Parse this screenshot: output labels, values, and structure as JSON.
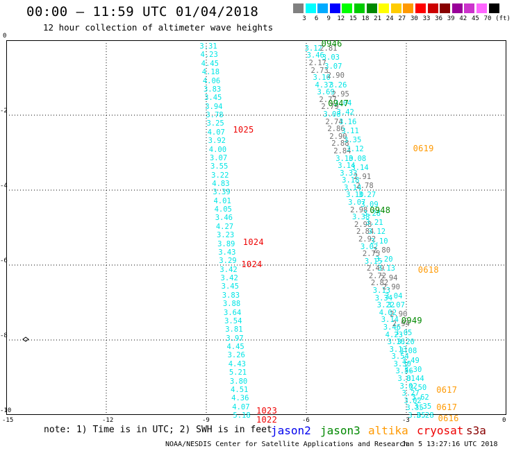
{
  "header": {
    "title": "00:00 – 11:59 UTC 01/04/2018",
    "subtitle": "12 hour collection of altimeter wave heights"
  },
  "colorbar": {
    "unit": "(ft)",
    "bins": [
      {
        "label": "3",
        "color": "#808080"
      },
      {
        "label": "6",
        "color": "#00ffff"
      },
      {
        "label": "9",
        "color": "#00aaff"
      },
      {
        "label": "12",
        "color": "#0000ff"
      },
      {
        "label": "15",
        "color": "#00ff00"
      },
      {
        "label": "18",
        "color": "#00cc00"
      },
      {
        "label": "21",
        "color": "#008800"
      },
      {
        "label": "24",
        "color": "#ffff00"
      },
      {
        "label": "27",
        "color": "#ffcc00"
      },
      {
        "label": "30",
        "color": "#ff9900"
      },
      {
        "label": "33",
        "color": "#ff0000"
      },
      {
        "label": "36",
        "color": "#cc0000"
      },
      {
        "label": "39",
        "color": "#880000"
      },
      {
        "label": "42",
        "color": "#990099"
      },
      {
        "label": "45",
        "color": "#cc33cc"
      },
      {
        "label": "70",
        "color": "#ff66ff"
      },
      {
        "label": "",
        "color": "#000000"
      }
    ]
  },
  "map": {
    "lon_range": [
      -15,
      0
    ],
    "lat_range": [
      -10,
      0
    ],
    "x_ticks": [
      "-15",
      "-12",
      "-9",
      "-6",
      "-3",
      "0"
    ],
    "y_ticks": [
      "0",
      "-2",
      "-4",
      "-6",
      "-8",
      "-10"
    ],
    "tracks": [
      {
        "name": "track-a",
        "color": "#00e5e5",
        "start": [
          -9.2,
          -0.15
        ],
        "end": [
          -8.2,
          -10.0
        ],
        "values": [
          "3.31",
          "4.23",
          "4.45",
          "4.18",
          "4.06",
          "3.83",
          "3.45",
          "3.94",
          "3.78",
          "3.25",
          "4.07",
          "3.92",
          "4.00",
          "3.07",
          "3.55",
          "3.22",
          "4.83",
          "3.39",
          "4.01",
          "4.05",
          "3.46",
          "4.27",
          "3.23",
          "3.89",
          "3.43",
          "3.29",
          "3.42",
          "3.42",
          "3.45",
          "3.83",
          "3.88",
          "3.64",
          "3.54",
          "3.81",
          "3.97",
          "4.45",
          "3.26",
          "4.43",
          "5.21",
          "3.80",
          "4.51",
          "4.36",
          "4.07",
          "5.18"
        ]
      },
      {
        "name": "track-b",
        "color": "#00e5e5",
        "start": [
          -6.05,
          -0.2
        ],
        "end": [
          -2.95,
          -10.0
        ],
        "values": [
          "3.12",
          "3.46",
          "2.17",
          "2.73",
          "3.10",
          "4.37",
          "3.69",
          "2.77",
          "2.79",
          "3.08",
          "2.74",
          "2.86",
          "2.90",
          "2.88",
          "2.84",
          "3.10",
          "3.14",
          "3.33",
          "3.18",
          "3.14",
          "3.10",
          "3.07",
          "2.98",
          "3.38",
          "2.98",
          "2.84",
          "2.92",
          "3.02",
          "2.75",
          "3.15",
          "2.49",
          "2.72",
          "2.82",
          "3.13",
          "3.34",
          "3.22",
          "4.02",
          "3.14",
          "3.46",
          "4.23",
          "3.16",
          "3.13",
          "3.54",
          "3.30",
          "3.56",
          "3.01",
          "3.02",
          "3.27",
          "3.02",
          "3.35",
          "3.85"
        ]
      },
      {
        "name": "track-c",
        "color": "#00e5e5",
        "start": [
          -5.6,
          -0.2
        ],
        "end": [
          -2.7,
          -10.0
        ],
        "values": [
          "2.81",
          "3.03",
          "3.07",
          "2.90",
          "3.26",
          "2.95",
          "3.04",
          "3.42",
          "3.16",
          "3.11",
          "3.35",
          "3.12",
          "3.08",
          "3.14",
          "2.91",
          "2.78",
          "3.27",
          "3.09",
          "3.28",
          "3.21",
          "3.12",
          "3.10",
          "2.80",
          "3.20",
          "3.13",
          "2.94",
          "2.90",
          "3.04",
          "3.07",
          "2.90",
          "2.94",
          "3.05",
          "3.20",
          "3.08",
          "3.49",
          "3.30",
          "3.44",
          "3.50",
          "3.62",
          "3.35",
          "3.28"
        ]
      }
    ],
    "time_labels": [
      {
        "text": "0946",
        "color": "#008800"
      },
      {
        "text": "0947",
        "color": "#008800"
      },
      {
        "text": "1025",
        "color": "#ee0000"
      },
      {
        "text": "0619",
        "color": "#ff9900"
      },
      {
        "text": "0948",
        "color": "#008800"
      },
      {
        "text": "1024",
        "color": "#ee0000"
      },
      {
        "text": "1024",
        "color": "#ee0000"
      },
      {
        "text": "0618",
        "color": "#ff9900"
      },
      {
        "text": "0949",
        "color": "#008800"
      },
      {
        "text": "0617",
        "color": "#ff9900"
      },
      {
        "text": "0617",
        "color": "#ff9900"
      },
      {
        "text": "1023",
        "color": "#ee0000"
      },
      {
        "text": "1022",
        "color": "#ee0000"
      },
      {
        "text": "0616",
        "color": "#ff9900"
      }
    ]
  },
  "footer": {
    "note": "note: 1) Time is in UTC; 2) SWH is in feet",
    "satellites": [
      {
        "name": "jason2",
        "color": "#0000ee"
      },
      {
        "name": "jason3",
        "color": "#008800"
      },
      {
        "name": "altika",
        "color": "#ff9900"
      },
      {
        "name": "cryosat",
        "color": "#ee0000"
      },
      {
        "name": "s3a",
        "color": "#880000"
      }
    ],
    "credit": "NOAA/NESDIS Center for Satellite Applications and Research",
    "timestamp": "Jan  5 13:27:16 UTC 2018"
  }
}
